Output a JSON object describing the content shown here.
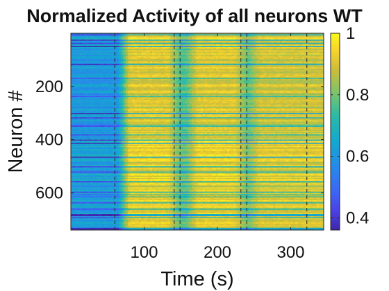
{
  "chart_data": {
    "type": "heatmap",
    "title": "Normalized Activity of all neurons WT",
    "xlabel": "Time (s)",
    "ylabel": "Neuron #",
    "xlim": [
      0,
      345
    ],
    "ylim": [
      740,
      0
    ],
    "x_ticks": [
      100,
      200,
      300
    ],
    "y_ticks": [
      200,
      400,
      600
    ],
    "colorbar": {
      "range": [
        0.36,
        1.0
      ],
      "ticks": [
        0.4,
        0.6,
        0.8,
        1
      ],
      "tick_labels": [
        "0.4",
        "0.6",
        "0.8",
        "1"
      ],
      "colormap": "parula"
    },
    "stimulus_lines_s": [
      60,
      141,
      149,
      232,
      240,
      322
    ],
    "activity_phases": [
      {
        "t_start": 0,
        "t_end": 72,
        "mean_level": 0.62
      },
      {
        "t_start": 72,
        "t_end": 141,
        "mean_level": 0.92
      },
      {
        "t_start": 141,
        "t_end": 165,
        "mean_level": 0.78
      },
      {
        "t_start": 165,
        "t_end": 232,
        "mean_level": 0.92
      },
      {
        "t_start": 232,
        "t_end": 250,
        "mean_level": 0.8
      },
      {
        "t_start": 250,
        "t_end": 345,
        "mean_level": 0.9
      }
    ],
    "neuron_count": 740
  }
}
